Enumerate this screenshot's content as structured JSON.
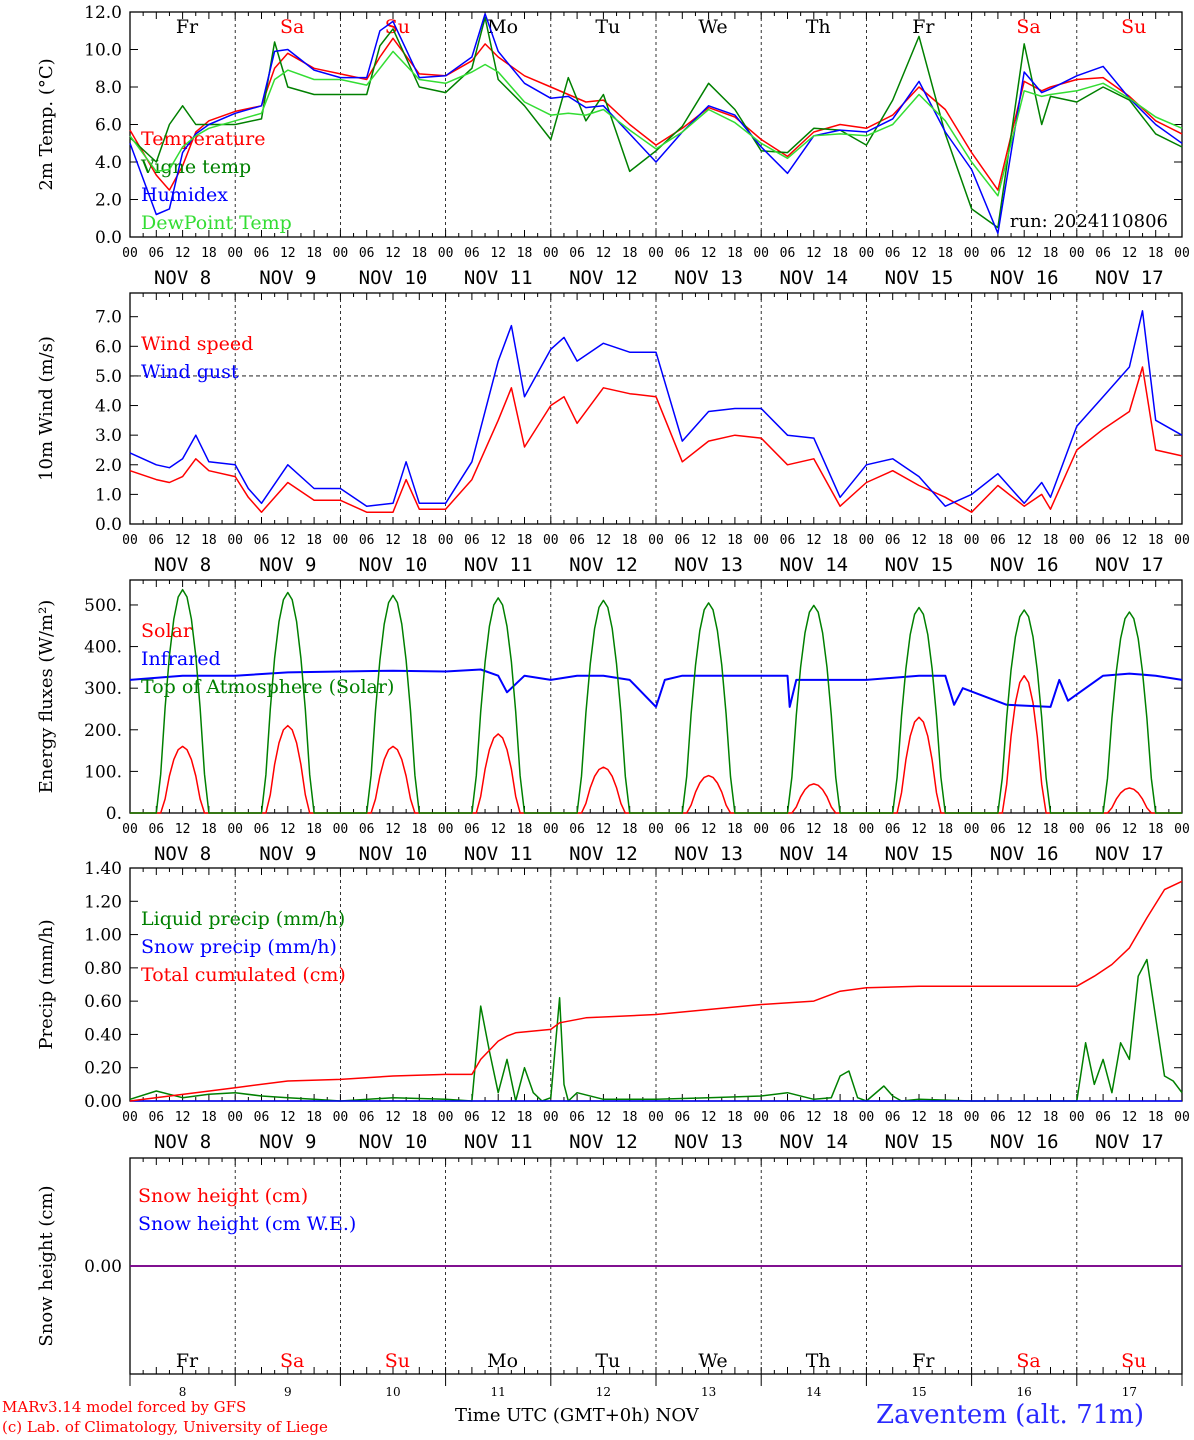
{
  "footer": {
    "model": "MARv3.14 model forced by GFS",
    "lab": "(c) Lab. of Climatology, University of Liege",
    "time_label": "Time UTC (GMT+0h) NOV",
    "station": "Zaventem (alt. 71m)"
  },
  "colors": {
    "red": "#ff0000",
    "green": "#008000",
    "blue": "#0000ff",
    "lightgreen": "#33dd33",
    "purple": "#800080",
    "weekend": "#ff0000",
    "weekday": "#000000"
  },
  "days": [
    {
      "abbr": "Fr",
      "date": "NOV  8",
      "num": "8",
      "weekend": false
    },
    {
      "abbr": "Sa",
      "date": "NOV  9",
      "num": "9",
      "weekend": true
    },
    {
      "abbr": "Su",
      "date": "NOV 10",
      "num": "10",
      "weekend": true
    },
    {
      "abbr": "Mo",
      "date": "NOV 11",
      "num": "11",
      "weekend": false
    },
    {
      "abbr": "Tu",
      "date": "NOV 12",
      "num": "12",
      "weekend": false
    },
    {
      "abbr": "We",
      "date": "NOV 13",
      "num": "13",
      "weekend": false
    },
    {
      "abbr": "Th",
      "date": "NOV 14",
      "num": "14",
      "weekend": false
    },
    {
      "abbr": "Fr",
      "date": "NOV 15",
      "num": "15",
      "weekend": false
    },
    {
      "abbr": "Sa",
      "date": "NOV 16",
      "num": "16",
      "weekend": true
    },
    {
      "abbr": "Su",
      "date": "NOV 17",
      "num": "17",
      "weekend": true
    }
  ],
  "hour_ticks": [
    "00",
    "06",
    "12",
    "18"
  ],
  "last_tick": "00",
  "chart_data": [
    {
      "type": "line",
      "ylabel": "2m Temp. (°C)",
      "ylim": [
        0,
        12
      ],
      "yticks": [
        "0.0",
        "2.0",
        "4.0",
        "6.0",
        "8.0",
        "10.0",
        "12.0"
      ],
      "annotation": "run: 2024110806",
      "x_hours": [
        0,
        6,
        9,
        12,
        15,
        18,
        24,
        30,
        33,
        36,
        42,
        48,
        54,
        57,
        60,
        66,
        72,
        78,
        81,
        84,
        90,
        96,
        100,
        104,
        108,
        114,
        120,
        126,
        132,
        138,
        144,
        150,
        156,
        162,
        168,
        174,
        180,
        186,
        192,
        198,
        204,
        208,
        210,
        216,
        222,
        228,
        234,
        240
      ],
      "series": [
        {
          "name": "Temperature",
          "color": "#ff0000",
          "values": [
            5.7,
            3.3,
            2.5,
            3.8,
            5.6,
            6.2,
            6.7,
            7.0,
            9.0,
            9.8,
            9.0,
            8.7,
            8.4,
            9.6,
            10.6,
            8.7,
            8.6,
            9.4,
            10.3,
            9.6,
            8.6,
            8.0,
            7.6,
            7.2,
            7.3,
            6.0,
            4.9,
            5.8,
            6.9,
            6.4,
            5.2,
            4.3,
            5.6,
            6.0,
            5.8,
            6.5,
            8.0,
            6.8,
            4.5,
            2.5,
            8.3,
            7.8,
            8.0,
            8.4,
            8.5,
            7.5,
            6.2,
            5.5
          ]
        },
        {
          "name": "Vigne temp",
          "color": "#008000",
          "values": [
            5.3,
            4.0,
            6.0,
            7.0,
            6.0,
            6.0,
            6.0,
            6.3,
            10.4,
            8.0,
            7.6,
            7.6,
            7.6,
            10.2,
            11.1,
            8.0,
            7.7,
            9.0,
            11.7,
            8.4,
            7.0,
            5.2,
            8.5,
            6.2,
            7.6,
            3.5,
            4.6,
            5.9,
            8.2,
            6.8,
            4.6,
            4.5,
            5.8,
            5.7,
            4.9,
            7.3,
            10.7,
            5.5,
            1.5,
            0.5,
            10.3,
            6.0,
            7.5,
            7.2,
            8.0,
            7.3,
            5.5,
            4.8
          ]
        },
        {
          "name": "Humidex",
          "color": "#0000ff",
          "values": [
            5.0,
            1.2,
            1.5,
            4.5,
            5.5,
            6.0,
            6.6,
            7.0,
            9.9,
            10.0,
            8.9,
            8.5,
            8.5,
            11.0,
            11.5,
            8.5,
            8.6,
            9.6,
            11.9,
            9.9,
            8.2,
            7.4,
            7.5,
            6.9,
            7.0,
            5.5,
            4.0,
            5.6,
            7.0,
            6.5,
            4.8,
            3.4,
            5.4,
            5.7,
            5.6,
            6.3,
            8.3,
            5.6,
            3.6,
            0.2,
            8.8,
            7.7,
            7.9,
            8.6,
            9.1,
            7.4,
            6.0,
            5.0
          ]
        },
        {
          "name": "DewPoint Temp",
          "color": "#33dd33",
          "values": [
            5.4,
            3.5,
            3.6,
            4.8,
            5.4,
            5.8,
            6.2,
            6.6,
            8.4,
            8.9,
            8.4,
            8.4,
            8.1,
            9.0,
            9.9,
            8.4,
            8.2,
            8.8,
            9.2,
            8.8,
            7.2,
            6.5,
            6.6,
            6.5,
            6.8,
            5.7,
            4.7,
            5.6,
            6.8,
            6.1,
            5.0,
            4.2,
            5.4,
            5.5,
            5.4,
            6.0,
            7.6,
            6.2,
            4.0,
            2.2,
            7.8,
            7.5,
            7.6,
            7.8,
            8.2,
            7.4,
            6.4,
            5.8
          ]
        }
      ]
    },
    {
      "type": "line",
      "ylabel": "10m Wind (m/s)",
      "ylim": [
        0,
        7.8
      ],
      "yticks": [
        "0.0",
        "1.0",
        "2.0",
        "3.0",
        "4.0",
        "5.0",
        "6.0",
        "7.0"
      ],
      "ref_line": 5.0,
      "x_hours": [
        0,
        6,
        9,
        12,
        15,
        18,
        24,
        27,
        30,
        36,
        42,
        48,
        54,
        60,
        63,
        66,
        72,
        78,
        84,
        87,
        90,
        96,
        99,
        102,
        108,
        114,
        120,
        126,
        132,
        138,
        144,
        150,
        156,
        162,
        168,
        174,
        180,
        186,
        192,
        198,
        204,
        208,
        210,
        216,
        222,
        228,
        231,
        234,
        240
      ],
      "series": [
        {
          "name": "Wind speed",
          "color": "#ff0000",
          "values": [
            1.8,
            1.5,
            1.4,
            1.6,
            2.2,
            1.8,
            1.6,
            0.9,
            0.4,
            1.4,
            0.8,
            0.8,
            0.4,
            0.4,
            1.5,
            0.5,
            0.5,
            1.5,
            3.5,
            4.6,
            2.6,
            4.0,
            4.3,
            3.4,
            4.6,
            4.4,
            4.3,
            2.1,
            2.8,
            3.0,
            2.9,
            2.0,
            2.2,
            0.6,
            1.4,
            1.8,
            1.3,
            0.9,
            0.4,
            1.3,
            0.6,
            1.0,
            0.5,
            2.5,
            3.2,
            3.8,
            5.3,
            2.5,
            2.3
          ]
        },
        {
          "name": "Wind gust",
          "color": "#0000ff",
          "values": [
            2.4,
            2.0,
            1.9,
            2.2,
            3.0,
            2.1,
            2.0,
            1.2,
            0.7,
            2.0,
            1.2,
            1.2,
            0.6,
            0.7,
            2.1,
            0.7,
            0.7,
            2.1,
            5.5,
            6.7,
            4.3,
            5.9,
            6.3,
            5.5,
            6.1,
            5.8,
            5.8,
            2.8,
            3.8,
            3.9,
            3.9,
            3.0,
            2.9,
            0.9,
            2.0,
            2.2,
            1.6,
            0.6,
            1.0,
            1.7,
            0.7,
            1.4,
            0.9,
            3.3,
            4.3,
            5.3,
            7.2,
            3.5,
            3.0
          ]
        }
      ]
    },
    {
      "type": "line",
      "ylabel": "Energy fluxes (W/m²)",
      "ylim": [
        0,
        560
      ],
      "yticks": [
        "0.",
        "100.",
        "200.",
        "300.",
        "400.",
        "500."
      ],
      "series": [
        {
          "name": "Solar",
          "color": "#ff0000",
          "day_peaks": [
            160,
            210,
            160,
            190,
            110,
            90,
            70,
            230,
            330,
            60
          ]
        },
        {
          "name": "Infrared",
          "color": "#0000ff",
          "x_hours": [
            0,
            12,
            24,
            36,
            48,
            60,
            72,
            80,
            84,
            86,
            90,
            96,
            102,
            108,
            114,
            120,
            122,
            126,
            132,
            144,
            150,
            150.5,
            152,
            156,
            168,
            180,
            186,
            188,
            190,
            200,
            210,
            212,
            214,
            222,
            228,
            234,
            240
          ],
          "values": [
            320,
            330,
            330,
            338,
            340,
            342,
            340,
            345,
            330,
            290,
            330,
            320,
            330,
            330,
            320,
            255,
            320,
            330,
            330,
            330,
            330,
            255,
            320,
            320,
            320,
            330,
            330,
            260,
            300,
            260,
            255,
            320,
            270,
            330,
            335,
            330,
            320
          ]
        },
        {
          "name": "Top of Atmosphere (Solar)",
          "color": "#008000",
          "day_peaks": [
            537,
            530,
            523,
            517,
            511,
            505,
            499,
            494,
            488,
            483
          ]
        }
      ]
    },
    {
      "type": "line",
      "ylabel": "Precip (mm/h)",
      "ylim": [
        0,
        1.4
      ],
      "yticks": [
        "0.00",
        "0.20",
        "0.40",
        "0.60",
        "0.80",
        "1.00",
        "1.20",
        "1.40"
      ],
      "series": [
        {
          "name": "Liquid precip (mm/h)",
          "color": "#008000",
          "x_hours": [
            0,
            6,
            12,
            18,
            24,
            30,
            36,
            42,
            48,
            60,
            72,
            78,
            80,
            82,
            84,
            86,
            88,
            90,
            92,
            94,
            96,
            98,
            99,
            100,
            102,
            108,
            120,
            132,
            144,
            150,
            156,
            160,
            162,
            164,
            166,
            168,
            172,
            174,
            176,
            180,
            192,
            204,
            216,
            218,
            220,
            222,
            224,
            226,
            228,
            230,
            232,
            234,
            236,
            238,
            240
          ],
          "values": [
            0.01,
            0.06,
            0.02,
            0.04,
            0.05,
            0.03,
            0.02,
            0.01,
            0.0,
            0.02,
            0.01,
            0.0,
            0.57,
            0.3,
            0.05,
            0.25,
            0.0,
            0.2,
            0.05,
            0.0,
            0.02,
            0.62,
            0.1,
            0.0,
            0.05,
            0.01,
            0.01,
            0.02,
            0.03,
            0.05,
            0.01,
            0.02,
            0.15,
            0.18,
            0.02,
            0.0,
            0.09,
            0.03,
            0.0,
            0.01,
            0.0,
            0.0,
            0.0,
            0.35,
            0.1,
            0.25,
            0.05,
            0.35,
            0.25,
            0.75,
            0.85,
            0.5,
            0.15,
            0.12,
            0.05
          ]
        },
        {
          "name": "Snow precip (mm/h)",
          "color": "#0000ff",
          "x_hours": [
            0,
            240
          ],
          "values": [
            0,
            0
          ]
        },
        {
          "name": "Total cumulated (cm)",
          "color": "#ff0000",
          "x_hours": [
            0,
            24,
            36,
            48,
            60,
            72,
            78,
            80,
            84,
            86,
            88,
            96,
            98,
            104,
            120,
            132,
            144,
            156,
            162,
            168,
            180,
            192,
            216,
            220,
            224,
            228,
            232,
            236,
            240
          ],
          "values": [
            0.0,
            0.08,
            0.12,
            0.13,
            0.15,
            0.16,
            0.16,
            0.25,
            0.36,
            0.39,
            0.41,
            0.43,
            0.47,
            0.5,
            0.52,
            0.55,
            0.58,
            0.6,
            0.66,
            0.68,
            0.69,
            0.69,
            0.69,
            0.75,
            0.82,
            0.92,
            1.1,
            1.27,
            1.32
          ]
        }
      ]
    },
    {
      "type": "line",
      "ylabel": "Snow height (cm)",
      "yticks": [
        "0.00"
      ],
      "series": [
        {
          "name": "Snow height (cm)",
          "color": "#ff0000",
          "x_hours": [
            0,
            240
          ],
          "values": [
            0,
            0
          ]
        },
        {
          "name": "Snow height (cm W.E.)",
          "color": "#0000ff",
          "x_hours": [
            0,
            240
          ],
          "values": [
            0,
            0
          ]
        }
      ]
    }
  ]
}
